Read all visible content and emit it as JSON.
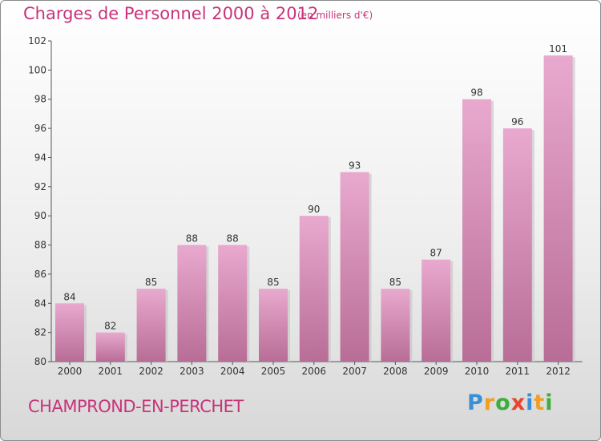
{
  "header": {
    "title": "Charges de Personnel 2000 à 2012",
    "subtitle": "(en milliers d'€)"
  },
  "footer": {
    "commune": "CHAMPROND-EN-PERCHET",
    "logo_letters": [
      "P",
      "r",
      "o",
      "x",
      "i",
      "t",
      "i"
    ],
    "logo_colors": [
      "#3a8fd6",
      "#f0a020",
      "#3cae3c",
      "#e8452c",
      "#3a8fd6",
      "#f0a020",
      "#3cae3c"
    ]
  },
  "colors": {
    "bar_top": "#e9a9cf",
    "bar_bottom": "#b86d96",
    "accent": "#c8337a"
  },
  "chart_data": {
    "type": "bar",
    "title": "Charges de Personnel 2000 à 2012",
    "subtitle": "(en milliers d'€)",
    "categories": [
      "2000",
      "2001",
      "2002",
      "2003",
      "2004",
      "2005",
      "2006",
      "2007",
      "2008",
      "2009",
      "2010",
      "2011",
      "2012"
    ],
    "values": [
      84,
      82,
      85,
      88,
      88,
      85,
      90,
      93,
      85,
      87,
      98,
      96,
      101
    ],
    "ylim": [
      80,
      102
    ],
    "yticks": [
      80,
      82,
      84,
      86,
      88,
      90,
      92,
      94,
      96,
      98,
      100,
      102
    ],
    "grid": false,
    "legend": "none"
  }
}
